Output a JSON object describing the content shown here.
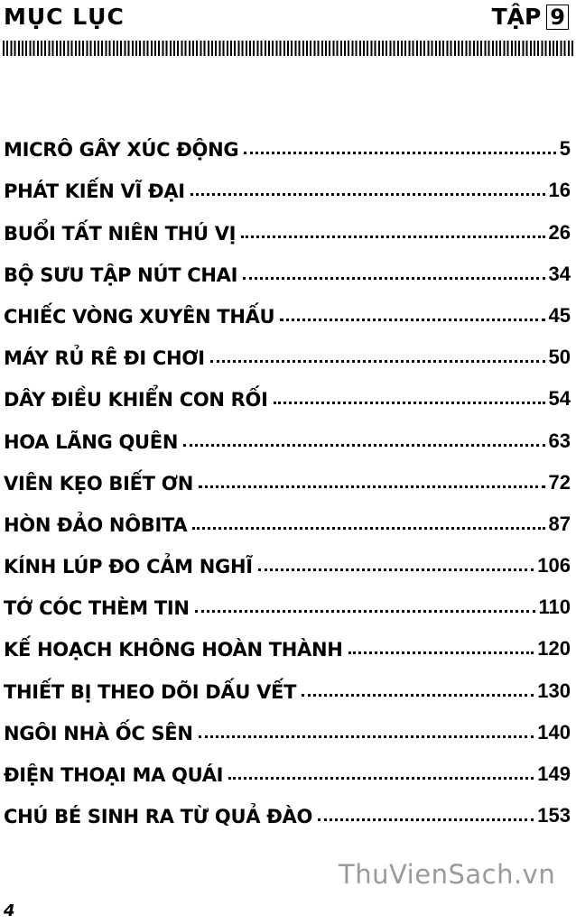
{
  "header": {
    "title": "MỤC LỤC",
    "volume_label": "TẬP",
    "volume_number": "9"
  },
  "toc": [
    {
      "title": "MICRÔ GÂY XÚC ĐỘNG",
      "page": "5"
    },
    {
      "title": "PHÁT KIẾN VĨ ĐẠI",
      "page": "16"
    },
    {
      "title": "BUỔI TẤT NIÊN THÚ VỊ",
      "page": "26"
    },
    {
      "title": "BỘ SƯU TẬP NÚT CHAI",
      "page": "34"
    },
    {
      "title": "CHIẾC VÒNG XUYÊN THẤU",
      "page": "45"
    },
    {
      "title": "MÁY RỦ RÊ ĐI CHƠI",
      "page": "50"
    },
    {
      "title": "DÂY ĐIỀU KHIỂN CON RỐI",
      "page": "54"
    },
    {
      "title": "HOA LÃNG QUÊN",
      "page": "63"
    },
    {
      "title": "VIÊN KẸO BIẾT ƠN",
      "page": "72"
    },
    {
      "title": "HÒN ĐẢO NÔBITA",
      "page": "87"
    },
    {
      "title": "KÍNH LÚP ĐO CẢM NGHĨ",
      "page": "106"
    },
    {
      "title": "TỚ CÓC THÈM TIN",
      "page": "110"
    },
    {
      "title": "KẾ HOẠCH KHÔNG HOÀN THÀNH",
      "page": "120"
    },
    {
      "title": "THIẾT BỊ THEO DÕI DẤU VẾT",
      "page": "130"
    },
    {
      "title": "NGÔI NHÀ ỐC SÊN",
      "page": "140"
    },
    {
      "title": "ĐIỆN THOẠI MA QUÁI",
      "page": "149"
    },
    {
      "title": "CHÚ BÉ SINH RA TỪ QUẢ ĐÀO",
      "page": "153"
    }
  ],
  "footer": {
    "page_number": "4",
    "watermark": "ThuVienSach.vn"
  }
}
